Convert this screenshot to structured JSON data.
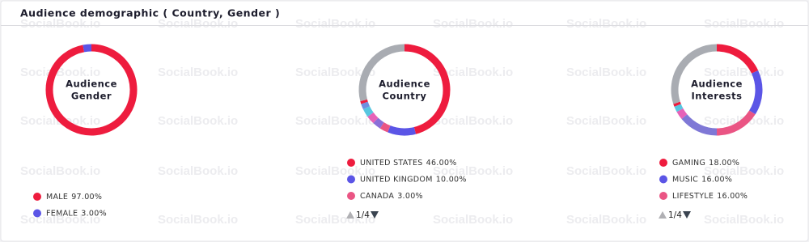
{
  "header": {
    "title": "Audience demographic ( Country, Gender )"
  },
  "watermark": "SocialBook.io",
  "chart_data": [
    {
      "type": "pie",
      "donut": true,
      "center_label": [
        "Audience",
        "Gender"
      ],
      "categories": [
        "MALE",
        "FEMALE"
      ],
      "values": [
        97,
        3
      ],
      "value_labels": [
        "97.00%",
        "3.00%"
      ],
      "colors": [
        "#ee1c3e",
        "#5b55e6"
      ]
    },
    {
      "type": "pie",
      "donut": true,
      "center_label": [
        "Audience",
        "Country"
      ],
      "categories": [
        "UNITED STATES",
        "UNITED KINGDOM",
        "CANADA",
        null,
        null,
        null,
        null,
        null,
        null
      ],
      "values": [
        46,
        10,
        3,
        3,
        3,
        3,
        2,
        1,
        29
      ],
      "value_labels": [
        "46.00%",
        "10.00%",
        "3.00%",
        null,
        null,
        null,
        null,
        null,
        null
      ],
      "colors": [
        "#ee1c3e",
        "#5b55e6",
        "#ea5584",
        "#8a6fd8",
        "#e662b8",
        "#58c6e0",
        "#6f8fe0",
        "#ee1c3e",
        "#a9acb2"
      ],
      "pager": "1/4"
    },
    {
      "type": "pie",
      "donut": true,
      "center_label": [
        "Audience",
        "Interests"
      ],
      "categories": [
        "GAMING",
        "MUSIC",
        "LIFESTYLE",
        null,
        null,
        null,
        null,
        null
      ],
      "values": [
        18,
        16,
        16,
        14,
        3,
        2,
        1,
        30
      ],
      "value_labels": [
        "18.00%",
        "16.00%",
        "16.00%",
        null,
        null,
        null,
        null,
        null
      ],
      "colors": [
        "#ee1c3e",
        "#5b55e6",
        "#ea5584",
        "#7f78d6",
        "#e662b8",
        "#58c6e0",
        "#ee1c3e",
        "#a9acb2"
      ],
      "pager": "1/4"
    }
  ]
}
